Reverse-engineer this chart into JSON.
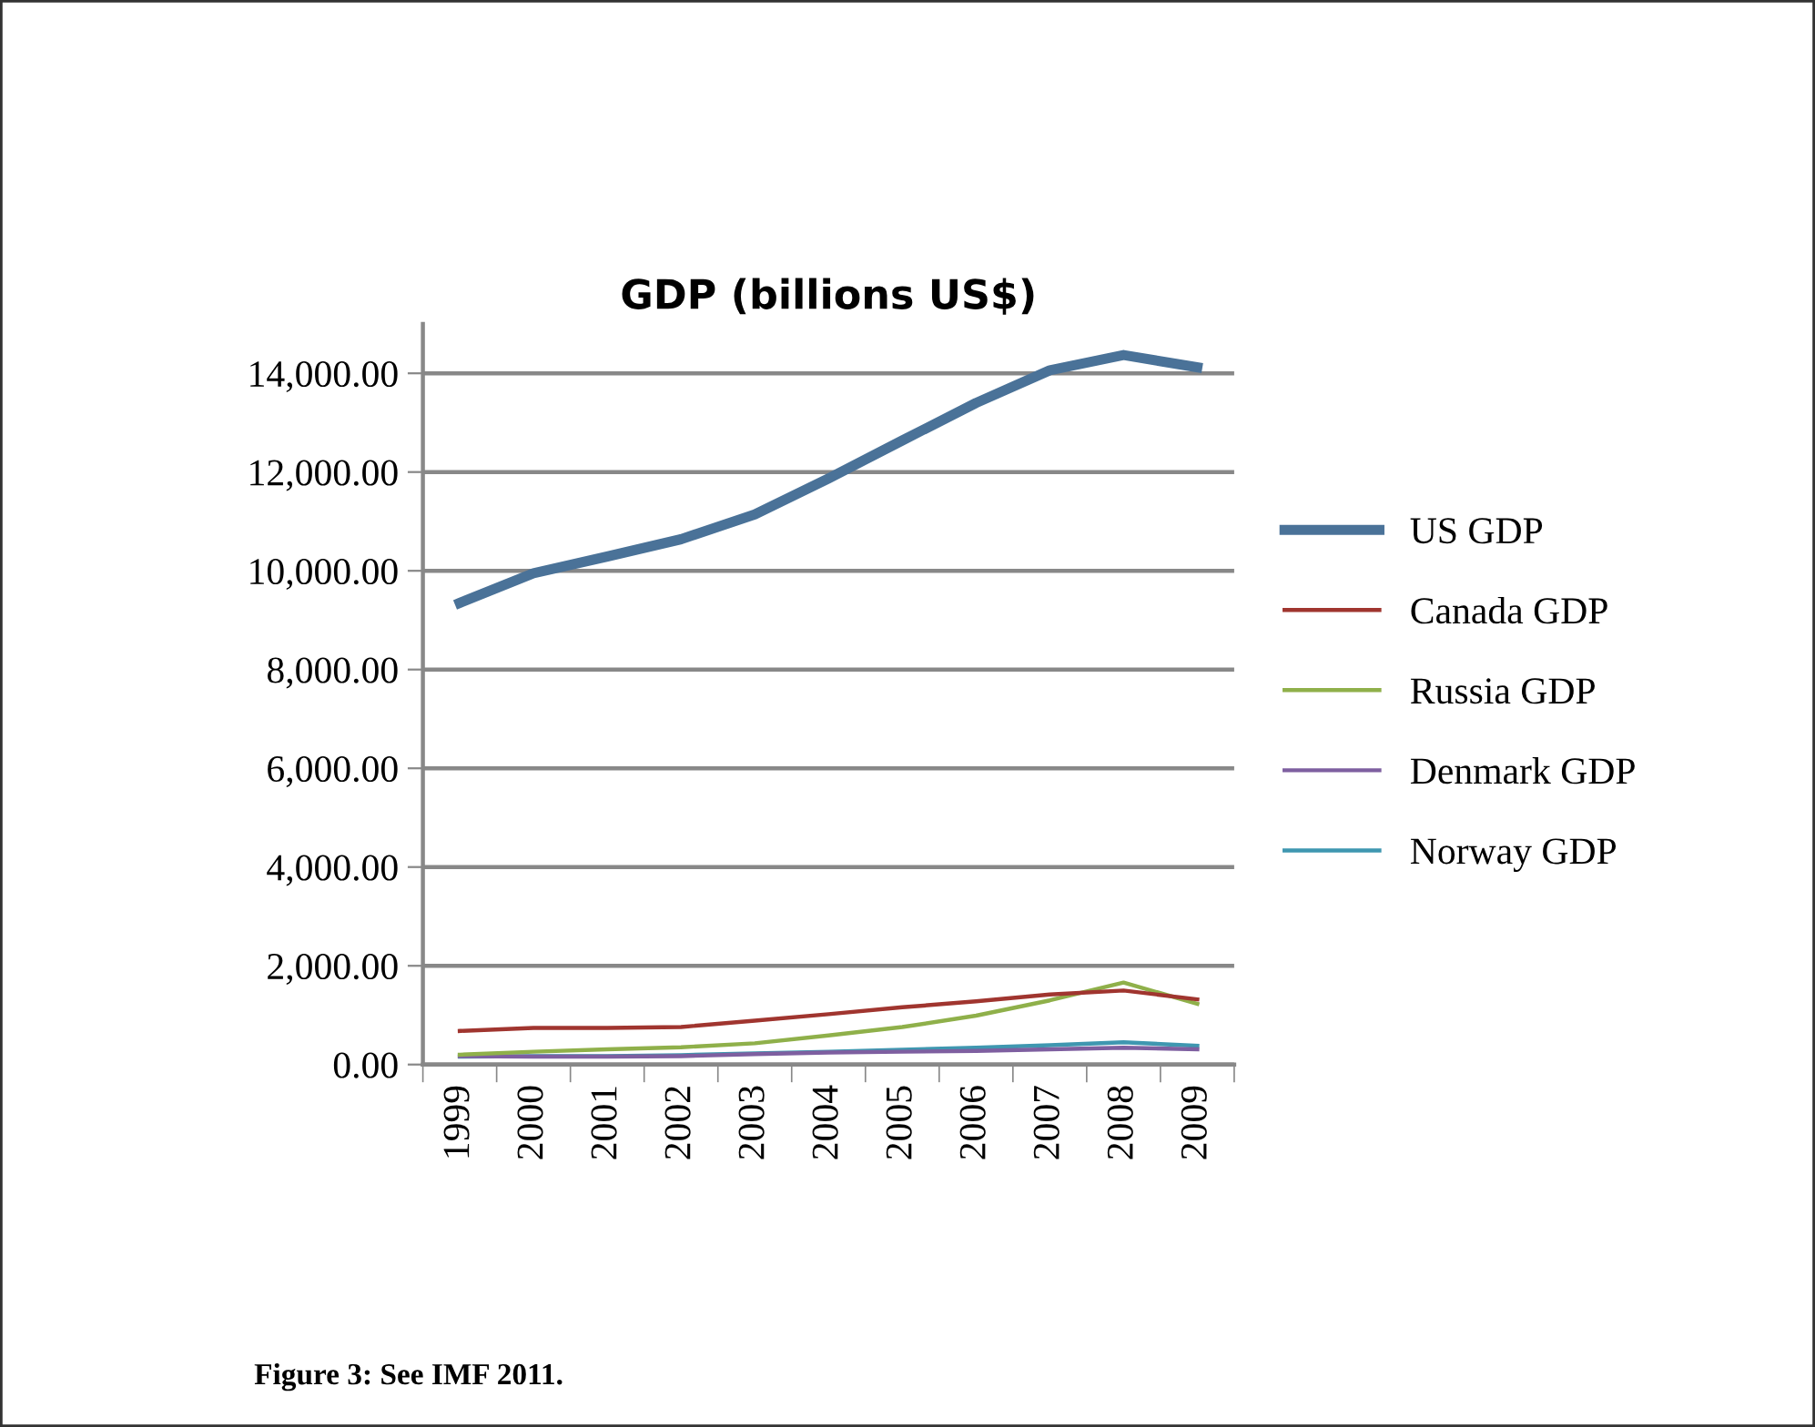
{
  "chart_data": {
    "type": "line",
    "title": "GDP (billions US$)",
    "categories": [
      "1999",
      "2000",
      "2001",
      "2002",
      "2003",
      "2004",
      "2005",
      "2006",
      "2007",
      "2008",
      "2009"
    ],
    "series": [
      {
        "name": "US GDP",
        "color": "#4a7298",
        "values": [
          9350,
          9950,
          10290,
          10640,
          11140,
          11870,
          12640,
          13400,
          14060,
          14370,
          14120
        ]
      },
      {
        "name": "Canada GDP",
        "color": "#a0352f",
        "values": [
          680,
          740,
          740,
          760,
          890,
          1020,
          1160,
          1280,
          1420,
          1500,
          1320
        ]
      },
      {
        "name": "Russia GDP",
        "color": "#8fb04a",
        "values": [
          200,
          260,
          310,
          350,
          430,
          590,
          760,
          990,
          1300,
          1660,
          1230
        ]
      },
      {
        "name": "Denmark GDP",
        "color": "#7e5fa0",
        "values": [
          170,
          160,
          160,
          170,
          210,
          245,
          260,
          275,
          310,
          340,
          310
        ]
      },
      {
        "name": "Norway GDP",
        "color": "#3f97b0",
        "values": [
          160,
          170,
          170,
          190,
          225,
          260,
          300,
          340,
          390,
          450,
          380
        ]
      }
    ],
    "ylim": [
      0,
      15000
    ],
    "yticks": [
      {
        "value": 0,
        "label": "0.00"
      },
      {
        "value": 2000,
        "label": "2,000.00"
      },
      {
        "value": 4000,
        "label": "4,000.00"
      },
      {
        "value": 6000,
        "label": "6,000.00"
      },
      {
        "value": 8000,
        "label": "8,000.00"
      },
      {
        "value": 10000,
        "label": "10,000.00"
      },
      {
        "value": 12000,
        "label": "12,000.00"
      },
      {
        "value": 14000,
        "label": "14,000.00"
      }
    ],
    "grid": "y",
    "legend": "right",
    "marker": "none",
    "line_style": "solid",
    "annotations": [
      "Figure 3: See IMF 2011."
    ]
  }
}
